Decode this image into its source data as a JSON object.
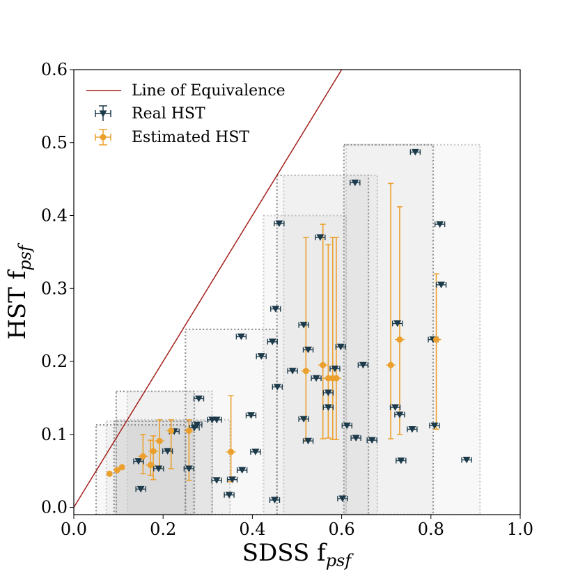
{
  "chart_data": {
    "type": "scatter",
    "xlabel": "SDSS f",
    "xlabel_sub": "psf",
    "ylabel": "HST f",
    "ylabel_sub": "psf",
    "xlim": [
      0.0,
      1.0
    ],
    "ylim": [
      -0.01,
      0.6
    ],
    "x_ticks": [
      "0.0",
      "0.2",
      "0.4",
      "0.6",
      "0.8",
      "1.0"
    ],
    "y_ticks": [
      "0.0",
      "0.1",
      "0.2",
      "0.3",
      "0.4",
      "0.5",
      "0.6"
    ],
    "legend_position": "top-left",
    "colors": {
      "line": "#a31f1a",
      "real": "#1c3a4a",
      "estimated": "#eba02e",
      "box_dark": "#8f8f8f",
      "box_light": "#c9c9c9"
    },
    "series": [
      {
        "name": "Line of Equivalence",
        "kind": "line",
        "points": [
          [
            0.0,
            0.0
          ],
          [
            1.0,
            1.0
          ]
        ]
      },
      {
        "name": "Real HST",
        "kind": "scatter",
        "marker": "triangle-down",
        "points": [
          {
            "x": 0.15,
            "y": 0.025
          },
          {
            "x": 0.145,
            "y": 0.063
          },
          {
            "x": 0.19,
            "y": 0.053
          },
          {
            "x": 0.21,
            "y": 0.077
          },
          {
            "x": 0.225,
            "y": 0.104
          },
          {
            "x": 0.258,
            "y": 0.053
          },
          {
            "x": 0.27,
            "y": 0.109
          },
          {
            "x": 0.276,
            "y": 0.113
          },
          {
            "x": 0.28,
            "y": 0.149
          },
          {
            "x": 0.31,
            "y": 0.12
          },
          {
            "x": 0.32,
            "y": 0.12
          },
          {
            "x": 0.32,
            "y": 0.037
          },
          {
            "x": 0.348,
            "y": 0.017
          },
          {
            "x": 0.355,
            "y": 0.038
          },
          {
            "x": 0.377,
            "y": 0.051
          },
          {
            "x": 0.375,
            "y": 0.234
          },
          {
            "x": 0.397,
            "y": 0.126
          },
          {
            "x": 0.407,
            "y": 0.076
          },
          {
            "x": 0.42,
            "y": 0.207
          },
          {
            "x": 0.445,
            "y": 0.227
          },
          {
            "x": 0.45,
            "y": 0.01
          },
          {
            "x": 0.452,
            "y": 0.272
          },
          {
            "x": 0.456,
            "y": 0.165
          },
          {
            "x": 0.46,
            "y": 0.389
          },
          {
            "x": 0.49,
            "y": 0.187
          },
          {
            "x": 0.515,
            "y": 0.121
          },
          {
            "x": 0.515,
            "y": 0.25
          },
          {
            "x": 0.525,
            "y": 0.216
          },
          {
            "x": 0.525,
            "y": 0.091
          },
          {
            "x": 0.543,
            "y": 0.177
          },
          {
            "x": 0.552,
            "y": 0.37
          },
          {
            "x": 0.57,
            "y": 0.157
          },
          {
            "x": 0.57,
            "y": 0.137
          },
          {
            "x": 0.585,
            "y": 0.19
          },
          {
            "x": 0.598,
            "y": 0.22
          },
          {
            "x": 0.602,
            "y": 0.012
          },
          {
            "x": 0.612,
            "y": 0.112
          },
          {
            "x": 0.63,
            "y": 0.445
          },
          {
            "x": 0.632,
            "y": 0.095
          },
          {
            "x": 0.648,
            "y": 0.195
          },
          {
            "x": 0.668,
            "y": 0.092
          },
          {
            "x": 0.72,
            "y": 0.137
          },
          {
            "x": 0.725,
            "y": 0.252
          },
          {
            "x": 0.73,
            "y": 0.127
          },
          {
            "x": 0.733,
            "y": 0.064
          },
          {
            "x": 0.758,
            "y": 0.107
          },
          {
            "x": 0.765,
            "y": 0.487
          },
          {
            "x": 0.805,
            "y": 0.23
          },
          {
            "x": 0.808,
            "y": 0.112
          },
          {
            "x": 0.82,
            "y": 0.388
          },
          {
            "x": 0.823,
            "y": 0.305
          },
          {
            "x": 0.88,
            "y": 0.065
          }
        ]
      },
      {
        "name": "Estimated HST",
        "kind": "errorbar",
        "marker": "circle",
        "points": [
          {
            "x": 0.08,
            "y": 0.046,
            "ylo": 0.046,
            "yhi": 0.046
          },
          {
            "x": 0.097,
            "y": 0.051,
            "ylo": 0.051,
            "yhi": 0.051
          },
          {
            "x": 0.108,
            "y": 0.055,
            "ylo": 0.055,
            "yhi": 0.055
          },
          {
            "x": 0.155,
            "y": 0.07,
            "ylo": 0.046,
            "yhi": 0.1
          },
          {
            "x": 0.172,
            "y": 0.058,
            "ylo": 0.044,
            "yhi": 0.092
          },
          {
            "x": 0.178,
            "y": 0.077,
            "ylo": 0.038,
            "yhi": 0.098
          },
          {
            "x": 0.192,
            "y": 0.091,
            "ylo": 0.054,
            "yhi": 0.12
          },
          {
            "x": 0.218,
            "y": 0.105,
            "ylo": 0.053,
            "yhi": 0.12
          },
          {
            "x": 0.258,
            "y": 0.105,
            "ylo": 0.037,
            "yhi": 0.12
          },
          {
            "x": 0.352,
            "y": 0.076,
            "ylo": 0.035,
            "yhi": 0.153
          },
          {
            "x": 0.52,
            "y": 0.187,
            "ylo": 0.092,
            "yhi": 0.37
          },
          {
            "x": 0.558,
            "y": 0.195,
            "ylo": 0.094,
            "yhi": 0.388
          },
          {
            "x": 0.57,
            "y": 0.177,
            "ylo": 0.095,
            "yhi": 0.36
          },
          {
            "x": 0.58,
            "y": 0.177,
            "ylo": 0.093,
            "yhi": 0.37
          },
          {
            "x": 0.588,
            "y": 0.177,
            "ylo": 0.093,
            "yhi": 0.37
          },
          {
            "x": 0.71,
            "y": 0.195,
            "ylo": 0.094,
            "yhi": 0.444
          },
          {
            "x": 0.73,
            "y": 0.23,
            "ylo": 0.1,
            "yhi": 0.412
          },
          {
            "x": 0.812,
            "y": 0.23,
            "ylo": 0.107,
            "yhi": 0.32
          }
        ]
      }
    ],
    "shaded_regions": [
      {
        "x0": 0.05,
        "x1": 0.25,
        "y0": -0.01,
        "y1": 0.113
      },
      {
        "x0": 0.073,
        "x1": 0.268,
        "y0": -0.01,
        "y1": 0.118
      },
      {
        "x0": 0.09,
        "x1": 0.31,
        "y0": -0.01,
        "y1": 0.118
      },
      {
        "x0": 0.095,
        "x1": 0.35,
        "y0": -0.01,
        "y1": 0.12
      },
      {
        "x0": 0.095,
        "x1": 0.27,
        "y0": -0.01,
        "y1": 0.159
      },
      {
        "x0": 0.12,
        "x1": 0.31,
        "y0": -0.01,
        "y1": 0.159
      },
      {
        "x0": 0.25,
        "x1": 0.455,
        "y0": -0.01,
        "y1": 0.244
      },
      {
        "x0": 0.425,
        "x1": 0.61,
        "y0": -0.01,
        "y1": 0.4
      },
      {
        "x0": 0.455,
        "x1": 0.66,
        "y0": -0.01,
        "y1": 0.455
      },
      {
        "x0": 0.47,
        "x1": 0.68,
        "y0": -0.01,
        "y1": 0.455
      },
      {
        "x0": 0.605,
        "x1": 0.805,
        "y0": -0.01,
        "y1": 0.497
      },
      {
        "x0": 0.61,
        "x1": 0.91,
        "y0": -0.01,
        "y1": 0.497
      }
    ]
  }
}
